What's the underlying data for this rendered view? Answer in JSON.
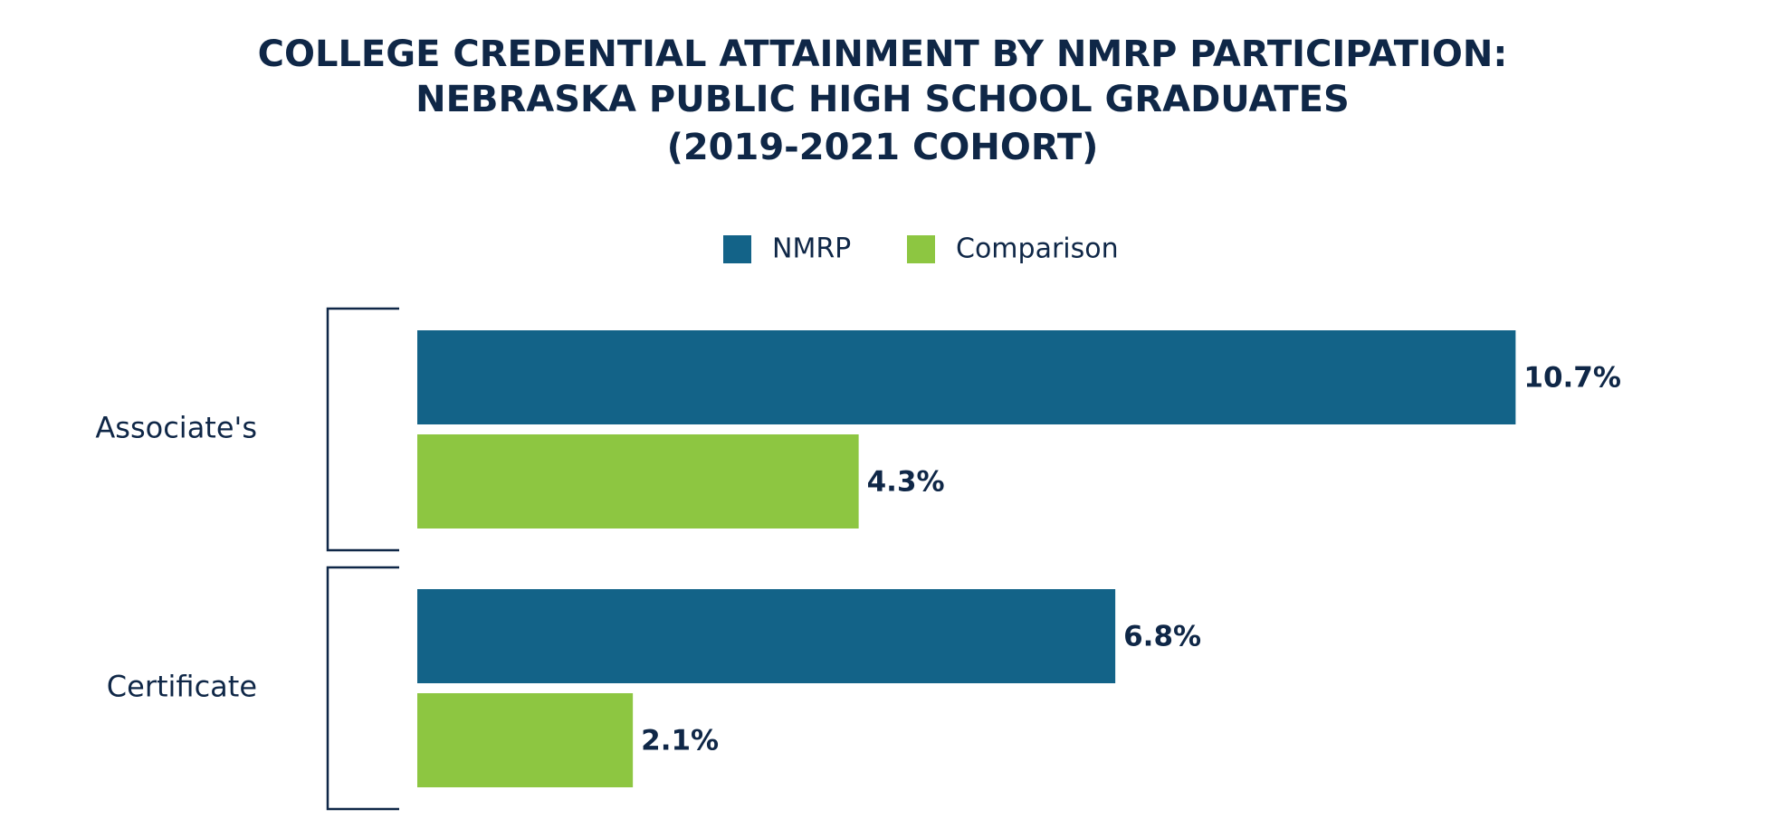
{
  "chart_data": {
    "type": "bar",
    "orientation": "horizontal",
    "title": [
      "COLLEGE CREDENTIAL ATTAINMENT BY NMRP PARTICIPATION:",
      "NEBRASKA PUBLIC HIGH SCHOOL GRADUATES",
      "(2019-2021 COHORT)"
    ],
    "categories": [
      "Associate's",
      "Certificate"
    ],
    "series": [
      {
        "name": "NMRP",
        "color": "#136388",
        "values": [
          10.7,
          6.8
        ],
        "value_labels": [
          "10.7%",
          "6.8%"
        ]
      },
      {
        "name": "Comparison",
        "color": "#8dc641",
        "values": [
          4.3,
          2.1
        ],
        "value_labels": [
          "4.3%",
          "2.1%"
        ]
      }
    ],
    "legend": "top"
  }
}
